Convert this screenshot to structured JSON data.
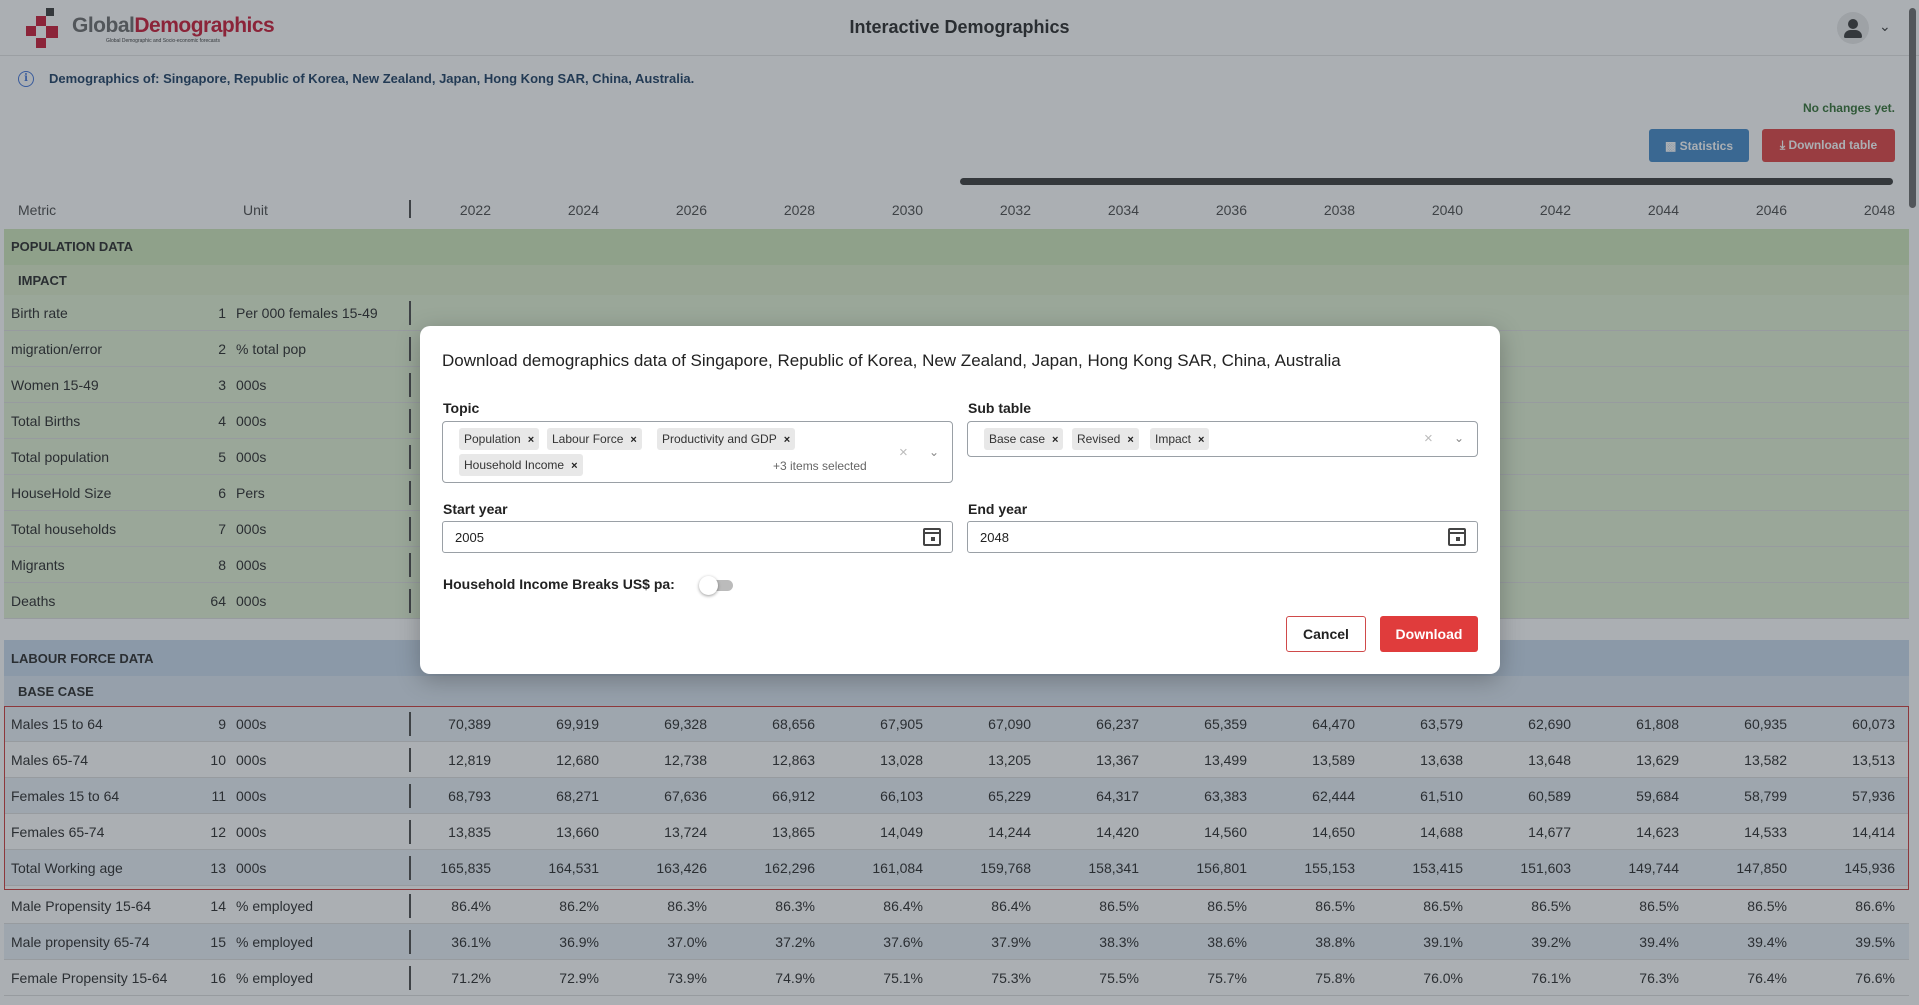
{
  "app": {
    "logo_text_grey": "Global",
    "logo_text_red": "Demographics",
    "logo_subtitle": "Global Demographic and Socio-economic forecasts",
    "title": "Interactive Demographics"
  },
  "info": {
    "text": "Demographics of: Singapore, Republic of Korea, New Zealand, Japan, Hong Kong SAR, China, Australia.",
    "status": "No changes yet."
  },
  "toolbar": {
    "statistics_label": "Statistics",
    "download_table_label": "Download table"
  },
  "table": {
    "metric_header": "Metric",
    "unit_header": "Unit",
    "years": [
      "2022",
      "2024",
      "2026",
      "2028",
      "2030",
      "2032",
      "2034",
      "2036",
      "2038",
      "2040",
      "2042",
      "2044",
      "2046",
      "2048"
    ],
    "population_section": "POPULATION DATA",
    "impact_subsection": "IMPACT",
    "population_rows": [
      {
        "metric": "Birth rate",
        "num": "1",
        "unit": "Per 000 females 15-49"
      },
      {
        "metric": "migration/error",
        "num": "2",
        "unit": "% total pop"
      },
      {
        "metric": "Women 15-49",
        "num": "3",
        "unit": "000s"
      },
      {
        "metric": "Total Births",
        "num": "4",
        "unit": "000s"
      },
      {
        "metric": "Total population",
        "num": "5",
        "unit": "000s"
      },
      {
        "metric": "HouseHold Size",
        "num": "6",
        "unit": "Pers"
      },
      {
        "metric": "Total households",
        "num": "7",
        "unit": "000s"
      },
      {
        "metric": "Migrants",
        "num": "8",
        "unit": "000s"
      },
      {
        "metric": "Deaths",
        "num": "64",
        "unit": "000s"
      }
    ],
    "labour_section": "LABOUR FORCE DATA",
    "base_case_subsection": "BASE CASE",
    "labour_rows": [
      {
        "metric": "Males 15 to 64",
        "num": "9",
        "unit": "000s",
        "values": [
          "70,389",
          "69,919",
          "69,328",
          "68,656",
          "67,905",
          "67,090",
          "66,237",
          "65,359",
          "64,470",
          "63,579",
          "62,690",
          "61,808",
          "60,935",
          "60,073"
        ]
      },
      {
        "metric": "Males 65-74",
        "num": "10",
        "unit": "000s",
        "values": [
          "12,819",
          "12,680",
          "12,738",
          "12,863",
          "13,028",
          "13,205",
          "13,367",
          "13,499",
          "13,589",
          "13,638",
          "13,648",
          "13,629",
          "13,582",
          "13,513"
        ]
      },
      {
        "metric": "Females 15 to 64",
        "num": "11",
        "unit": "000s",
        "values": [
          "68,793",
          "68,271",
          "67,636",
          "66,912",
          "66,103",
          "65,229",
          "64,317",
          "63,383",
          "62,444",
          "61,510",
          "60,589",
          "59,684",
          "58,799",
          "57,936"
        ]
      },
      {
        "metric": "Females 65-74",
        "num": "12",
        "unit": "000s",
        "values": [
          "13,835",
          "13,660",
          "13,724",
          "13,865",
          "14,049",
          "14,244",
          "14,420",
          "14,560",
          "14,650",
          "14,688",
          "14,677",
          "14,623",
          "14,533",
          "14,414"
        ]
      },
      {
        "metric": "Total Working age",
        "num": "13",
        "unit": "000s",
        "values": [
          "165,835",
          "164,531",
          "163,426",
          "162,296",
          "161,084",
          "159,768",
          "158,341",
          "156,801",
          "155,153",
          "153,415",
          "151,603",
          "149,744",
          "147,850",
          "145,936"
        ]
      },
      {
        "metric": "Male Propensity 15-64",
        "num": "14",
        "unit": "% employed",
        "values": [
          "86.4%",
          "86.2%",
          "86.3%",
          "86.3%",
          "86.4%",
          "86.4%",
          "86.5%",
          "86.5%",
          "86.5%",
          "86.5%",
          "86.5%",
          "86.5%",
          "86.5%",
          "86.6%"
        ]
      },
      {
        "metric": "Male propensity 65-74",
        "num": "15",
        "unit": "% employed",
        "values": [
          "36.1%",
          "36.9%",
          "37.0%",
          "37.2%",
          "37.6%",
          "37.9%",
          "38.3%",
          "38.6%",
          "38.8%",
          "39.1%",
          "39.2%",
          "39.4%",
          "39.4%",
          "39.5%"
        ]
      },
      {
        "metric": "Female Propensity 15-64",
        "num": "16",
        "unit": "% employed",
        "values": [
          "71.2%",
          "72.9%",
          "73.9%",
          "74.9%",
          "75.1%",
          "75.3%",
          "75.5%",
          "75.7%",
          "75.8%",
          "76.0%",
          "76.1%",
          "76.3%",
          "76.4%",
          "76.6%"
        ]
      }
    ]
  },
  "modal": {
    "title": "Download demographics data of Singapore, Republic of Korea, New Zealand, Japan, Hong Kong SAR, China, Australia",
    "topic": {
      "label": "Topic",
      "chips": [
        "Population",
        "Labour Force",
        "Productivity and GDP",
        "Household Income"
      ],
      "more": "+3 items selected"
    },
    "subtable": {
      "label": "Sub table",
      "chips": [
        "Base case",
        "Revised",
        "Impact"
      ]
    },
    "start_year": {
      "label": "Start year",
      "value": "2005"
    },
    "end_year": {
      "label": "End year",
      "value": "2048"
    },
    "toggle_label": "Household Income Breaks US$ pa:",
    "toggle_on": false,
    "cancel_label": "Cancel",
    "download_label": "Download"
  },
  "colors": {
    "population_row_bg": "#e2f1d2",
    "population_section_bg": "#cfe7b8",
    "labour_row_bg": "#ffffff",
    "labour_row_alt_bg": "#e9eff7",
    "labour_section_bg": "#c9d9ec",
    "accent_red": "#e03c3c",
    "accent_blue": "#3d85c6"
  }
}
